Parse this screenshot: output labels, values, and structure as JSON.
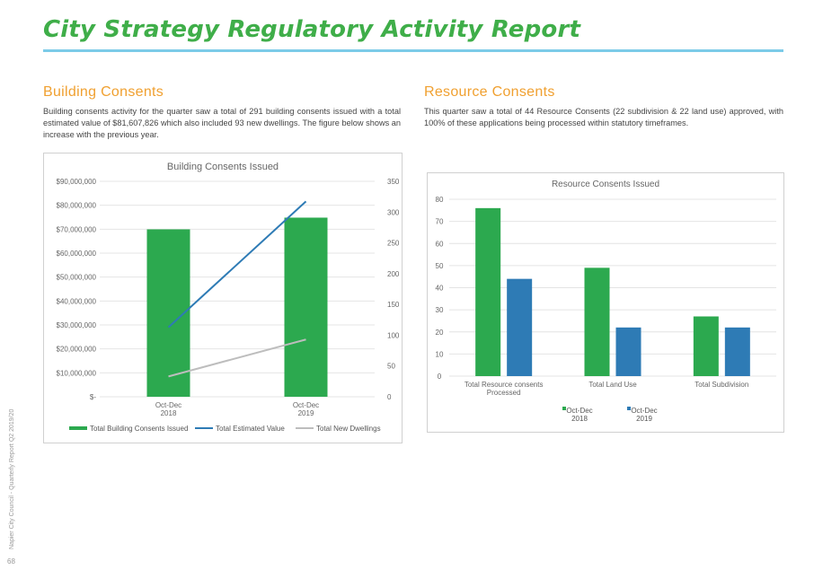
{
  "report_title": "City Strategy Regulatory Activity Report",
  "building": {
    "heading": "Building Consents",
    "paragraph": "Building consents activity for the quarter saw a total of 291 building consents issued with a total estimated value of $81,607,826 which also included 93 new dwellings. The figure below shows an increase with the previous year."
  },
  "resource": {
    "heading": "Resource Consents",
    "paragraph": "This quarter saw a total of 44 Resource Consents (22 subdivision & 22 land use) approved, with 100% of these applications being processed within statutory timeframes."
  },
  "side_text": "Napier City Council - Quarterly Report Q2 2019/20",
  "page_number": "68",
  "colors": {
    "green": "#2ca94f",
    "blue": "#2e7bb5",
    "grey": "#bdbdbd",
    "accent": "#3fae49",
    "heading": "#f0a030"
  },
  "chart_data": [
    {
      "type": "bar",
      "title": "Building Consents Issued",
      "categories": [
        "Oct-Dec|2018",
        "Oct-Dec|2019"
      ],
      "left_axis": {
        "min": 0,
        "max": 90000000,
        "ticks": [
          "$-",
          "$10,000,000",
          "$20,000,000",
          "$30,000,000",
          "$40,000,000",
          "$50,000,000",
          "$60,000,000",
          "$70,000,000",
          "$80,000,000",
          "$90,000,000"
        ]
      },
      "right_axis": {
        "min": 0,
        "max": 350,
        "ticks": [
          "0",
          "50",
          "100",
          "150",
          "200",
          "250",
          "300",
          "350"
        ]
      },
      "series": [
        {
          "name": "Total Building Consents Issued",
          "type": "bar",
          "axis": "right",
          "values": [
            272,
            291
          ]
        },
        {
          "name": "Total Estimated Value",
          "type": "line",
          "axis": "left",
          "values": [
            29000000,
            81607826
          ]
        },
        {
          "name": "Total New Dwellings",
          "type": "line",
          "axis": "right",
          "values": [
            33,
            93
          ]
        }
      ],
      "legend_position": "bottom",
      "grid": true
    },
    {
      "type": "bar",
      "title": "Resource Consents Issued",
      "categories": [
        "Total Resource consents|Processed",
        "Total Land Use",
        "Total Subdivision"
      ],
      "y_axis": {
        "min": 0,
        "max": 80,
        "ticks": [
          "0",
          "10",
          "20",
          "30",
          "40",
          "50",
          "60",
          "70",
          "80"
        ]
      },
      "series": [
        {
          "name": "Oct-Dec|2018",
          "values": [
            76,
            49,
            27
          ]
        },
        {
          "name": "Oct-Dec|2019",
          "values": [
            44,
            22,
            22
          ]
        }
      ],
      "legend_position": "bottom",
      "grid": true
    }
  ]
}
